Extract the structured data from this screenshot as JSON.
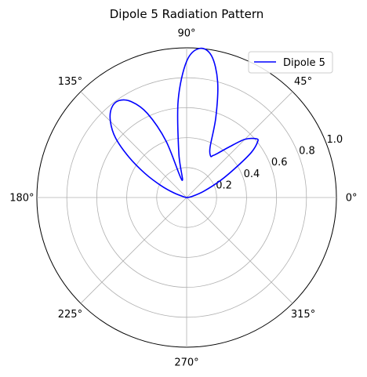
{
  "chart_data": {
    "type": "polar-line",
    "title": "Dipole 5 Radiation Pattern",
    "angle_unit": "degrees",
    "angle_ticks": [
      0,
      45,
      90,
      135,
      180,
      225,
      270,
      315
    ],
    "angle_tick_labels": [
      "0°",
      "45°",
      "90°",
      "135°",
      "180°",
      "225°",
      "270°",
      "315°"
    ],
    "radial_ticks": [
      0.2,
      0.4,
      0.6,
      0.8,
      1.0
    ],
    "radial_tick_labels": [
      "0.2",
      "0.4",
      "0.6",
      "0.8",
      "1.0"
    ],
    "radial_label_angle_deg": 22.5,
    "rlim": [
      0,
      1.0
    ],
    "grid": true,
    "legend": {
      "position": "top-right",
      "entries": [
        "Dipole 5"
      ]
    },
    "series": [
      {
        "name": "Dipole 5",
        "color": "#0000ff",
        "theta_deg": [
          0,
          10,
          20,
          27,
          32,
          35,
          38,
          40,
          45,
          50,
          55,
          58,
          60,
          65,
          70,
          75,
          80,
          85,
          90,
          95,
          100,
          105,
          110,
          115,
          120,
          125,
          130,
          135,
          140,
          145,
          150,
          155,
          160,
          170,
          180
        ],
        "r": [
          0,
          0.03,
          0.12,
          0.26,
          0.41,
          0.53,
          0.6,
          0.61,
          0.55,
          0.44,
          0.36,
          0.33,
          0.32,
          0.37,
          0.57,
          0.8,
          0.96,
          1.0,
          0.91,
          0.65,
          0.3,
          0.12,
          0.4,
          0.62,
          0.74,
          0.79,
          0.78,
          0.72,
          0.62,
          0.47,
          0.32,
          0.19,
          0.09,
          0.01,
          0
        ]
      }
    ]
  }
}
